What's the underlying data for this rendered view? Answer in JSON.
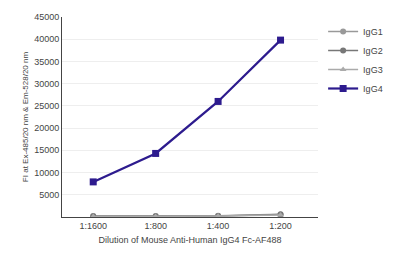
{
  "chart_data": {
    "type": "line",
    "xlabel": "Dilution of Mouse Anti-Human IgG4 Fc-AF488",
    "ylabel": "FI at Ex-485/20 nm & Em-528/20 nm",
    "categories": [
      "1:1600",
      "1:800",
      "1:400",
      "1:200"
    ],
    "series": [
      {
        "name": "IgG1",
        "color": "#999999",
        "marker": "circle",
        "line_style": "solid",
        "values": [
          200,
          200,
          300,
          600
        ]
      },
      {
        "name": "IgG2",
        "color": "#777777",
        "marker": "circle",
        "line_style": "solid",
        "values": [
          150,
          150,
          250,
          550
        ]
      },
      {
        "name": "IgG3",
        "color": "#aaaaaa",
        "marker": "triangle-up",
        "line_style": "solid",
        "values": [
          100,
          100,
          200,
          450
        ]
      },
      {
        "name": "IgG4",
        "color": "#2d1b8e",
        "marker": "square",
        "line_style": "solid",
        "values": [
          7900,
          14300,
          26000,
          39800
        ]
      }
    ],
    "ylim": [
      0,
      45000
    ],
    "yticks": [
      5000,
      10000,
      15000,
      20000,
      25000,
      30000,
      35000,
      40000,
      45000
    ],
    "grid": true,
    "legend": "right"
  }
}
